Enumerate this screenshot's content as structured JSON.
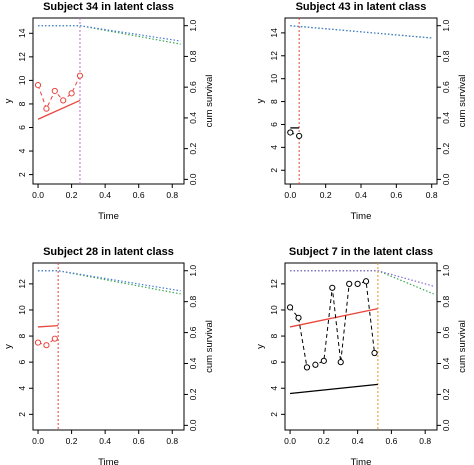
{
  "chart_data": [
    {
      "type": "line",
      "title": "Subject 34 in latent class",
      "xlabel": "Time",
      "ylabel": "y",
      "y2label": "cum survival",
      "xticks": [
        "0.0",
        "0.2",
        "0.4",
        "0.6",
        "0.8"
      ],
      "yticks": [
        "2",
        "4",
        "6",
        "8",
        "10",
        "12",
        "14"
      ],
      "y2ticks": [
        "0.0",
        "0.2",
        "0.4",
        "0.6",
        "0.8",
        "1.0"
      ],
      "xlim": [
        -0.03,
        0.87
      ],
      "ylim": [
        1.2,
        15.3
      ],
      "y2lim": [
        -0.03,
        1.05
      ],
      "obs_color": "#e8453c",
      "observations": {
        "x": [
          0.0,
          0.05,
          0.1,
          0.15,
          0.2,
          0.25
        ],
        "y": [
          9.6,
          7.6,
          9.1,
          8.3,
          8.9,
          10.4
        ]
      },
      "fitted": {
        "color": "#e8453c",
        "x": [
          0.0,
          0.25
        ],
        "y": [
          6.7,
          8.3
        ]
      },
      "event_time": {
        "x": 0.25,
        "color": "#c46ad0"
      },
      "survival": [
        {
          "color": "#35a852",
          "x": [
            0.0,
            0.25,
            0.85
          ],
          "y": [
            1.0,
            1.0,
            0.88
          ]
        },
        {
          "color": "#4b7bd8",
          "x": [
            0.0,
            0.25,
            0.85
          ],
          "y": [
            1.0,
            1.0,
            0.9
          ]
        }
      ]
    },
    {
      "type": "line",
      "title": "Subject 43 in latent class",
      "xlabel": "Time",
      "ylabel": "y",
      "y2label": "cum survival",
      "xticks": [
        "0.0",
        "0.2",
        "0.4",
        "0.6",
        "0.8"
      ],
      "yticks": [
        "2",
        "4",
        "6",
        "8",
        "10",
        "12",
        "14"
      ],
      "y2ticks": [
        "0.0",
        "0.2",
        "0.4",
        "0.6",
        "0.8",
        "1.0"
      ],
      "xlim": [
        -0.03,
        0.83
      ],
      "ylim": [
        0.8,
        15.3
      ],
      "y2lim": [
        -0.03,
        1.05
      ],
      "obs_color": "#000000",
      "observations": {
        "x": [
          0.0,
          0.05
        ],
        "y": [
          5.3,
          5.0
        ]
      },
      "fitted": {
        "color": "#000000",
        "x": [
          0.0,
          0.05
        ],
        "y": [
          5.7,
          5.7
        ]
      },
      "event_time": {
        "x": 0.05,
        "color": "#e8453c"
      },
      "survival": [
        {
          "color": "#35a852",
          "x": [
            0.0,
            0.8
          ],
          "y": [
            1.0,
            0.92
          ]
        },
        {
          "color": "#4b7bd8",
          "x": [
            0.0,
            0.8
          ],
          "y": [
            1.0,
            0.92
          ]
        }
      ]
    },
    {
      "type": "line",
      "title": "Subject 28 in latent class",
      "xlabel": "Time",
      "ylabel": "y",
      "y2label": "cum survival",
      "xticks": [
        "0.0",
        "0.2",
        "0.4",
        "0.6",
        "0.8"
      ],
      "yticks": [
        "2",
        "4",
        "6",
        "8",
        "10",
        "12"
      ],
      "y2ticks": [
        "0.0",
        "0.2",
        "0.4",
        "0.6",
        "0.8",
        "1.0"
      ],
      "xlim": [
        -0.03,
        0.87
      ],
      "ylim": [
        0.8,
        13.6
      ],
      "y2lim": [
        -0.03,
        1.05
      ],
      "obs_color": "#e8453c",
      "observations": {
        "x": [
          0.0,
          0.05,
          0.1
        ],
        "y": [
          7.5,
          7.3,
          7.8
        ]
      },
      "fitted": {
        "color": "#e8453c",
        "x": [
          0.0,
          0.12
        ],
        "y": [
          8.7,
          8.8
        ]
      },
      "event_time": {
        "x": 0.12,
        "color": "#e8453c"
      },
      "survival": [
        {
          "color": "#35a852",
          "x": [
            0.0,
            0.12,
            0.85
          ],
          "y": [
            1.0,
            1.0,
            0.85
          ]
        },
        {
          "color": "#4b7bd8",
          "x": [
            0.0,
            0.12,
            0.85
          ],
          "y": [
            1.0,
            1.0,
            0.87
          ]
        }
      ]
    },
    {
      "type": "line",
      "title": "Subject 7 in the latent class",
      "xlabel": "Time",
      "ylabel": "y",
      "y2label": "cum survival",
      "xticks": [
        "0.0",
        "0.2",
        "0.4",
        "0.6",
        "0.8"
      ],
      "yticks": [
        "2",
        "4",
        "6",
        "8",
        "10",
        "12"
      ],
      "y2ticks": [
        "0.0",
        "0.2",
        "0.4",
        "0.6",
        "0.8",
        "1.0"
      ],
      "xlim": [
        -0.03,
        0.87
      ],
      "ylim": [
        0.8,
        13.6
      ],
      "y2lim": [
        -0.03,
        1.05
      ],
      "obs_color": "#000000",
      "observations": {
        "x": [
          0.0,
          0.05,
          0.1,
          0.15,
          0.2,
          0.25,
          0.3,
          0.35,
          0.4,
          0.45,
          0.5
        ],
        "y": [
          10.2,
          9.4,
          5.6,
          5.8,
          6.1,
          11.7,
          6.0,
          12.0,
          12.0,
          12.2,
          6.7
        ]
      },
      "fitted_lines": [
        {
          "color": "#e8453c",
          "x": [
            0.0,
            0.52
          ],
          "y": [
            8.7,
            10.1
          ]
        },
        {
          "color": "#000000",
          "x": [
            0.0,
            0.52
          ],
          "y": [
            3.6,
            4.3
          ]
        }
      ],
      "event_time": {
        "x": 0.52,
        "color": "#f28c28"
      },
      "survival": [
        {
          "color": "#35a852",
          "x": [
            0.0,
            0.52,
            0.85
          ],
          "y": [
            1.0,
            1.0,
            0.85
          ]
        },
        {
          "color": "#8a6ad8",
          "x": [
            0.0,
            0.52,
            0.85
          ],
          "y": [
            1.0,
            1.0,
            0.9
          ]
        }
      ]
    }
  ]
}
